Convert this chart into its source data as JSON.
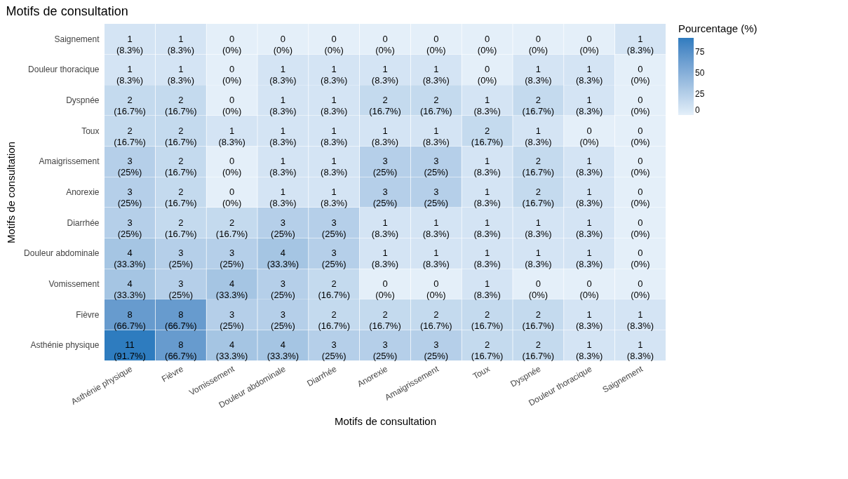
{
  "chart_data": {
    "type": "heatmap",
    "title": "Motifs de consultation",
    "xlabel": "Motifs de consultation",
    "ylabel": "Motifs de consultation",
    "legend_title": "Pourcentage (%)",
    "categories": [
      "Asthénie physique",
      "Fièvre",
      "Vomissement",
      "Douleur abdominale",
      "Diarrhée",
      "Anorexie",
      "Amaigrissement",
      "Toux",
      "Dyspnée",
      "Douleur thoracique",
      "Saignement"
    ],
    "y_categories": [
      "Saignement",
      "Douleur thoracique",
      "Dyspnée",
      "Toux",
      "Amaigrissement",
      "Anorexie",
      "Diarrhée",
      "Douleur abdominale",
      "Vomissement",
      "Fièvre",
      "Asthénie physique"
    ],
    "cells": [
      [
        8.3,
        8.3,
        0,
        0,
        0,
        0,
        0,
        0,
        0,
        0,
        8.3
      ],
      [
        8.3,
        8.3,
        0,
        8.3,
        8.3,
        8.3,
        8.3,
        0,
        8.3,
        8.3,
        0
      ],
      [
        16.7,
        16.7,
        0,
        8.3,
        8.3,
        16.7,
        16.7,
        8.3,
        16.7,
        8.3,
        0
      ],
      [
        16.7,
        16.7,
        8.3,
        8.3,
        8.3,
        8.3,
        8.3,
        16.7,
        8.3,
        0,
        0
      ],
      [
        25,
        16.7,
        0,
        8.3,
        8.3,
        25,
        25,
        8.3,
        16.7,
        8.3,
        0
      ],
      [
        25,
        16.7,
        0,
        8.3,
        8.3,
        25,
        25,
        8.3,
        16.7,
        8.3,
        0
      ],
      [
        25,
        16.7,
        16.7,
        25,
        25,
        8.3,
        8.3,
        8.3,
        8.3,
        8.3,
        0
      ],
      [
        33.3,
        25,
        25,
        33.3,
        25,
        8.3,
        8.3,
        8.3,
        8.3,
        8.3,
        0
      ],
      [
        33.3,
        25,
        33.3,
        25,
        16.7,
        0,
        0,
        8.3,
        0,
        0,
        0
      ],
      [
        66.7,
        66.7,
        25,
        25,
        16.7,
        16.7,
        16.7,
        16.7,
        16.7,
        8.3,
        8.3
      ],
      [
        91.7,
        66.7,
        33.3,
        33.3,
        25,
        25,
        25,
        16.7,
        16.7,
        8.3,
        8.3
      ]
    ],
    "cell_labels": [
      [
        "1\n(8.3%)",
        "1\n(8.3%)",
        "0\n(0%)",
        "0\n(0%)",
        "0\n(0%)",
        "0\n(0%)",
        "0\n(0%)",
        "0\n(0%)",
        "0\n(0%)",
        "0\n(0%)",
        "1\n(8.3%)"
      ],
      [
        "1\n(8.3%)",
        "1\n(8.3%)",
        "0\n(0%)",
        "1\n(8.3%)",
        "1\n(8.3%)",
        "1\n(8.3%)",
        "1\n(8.3%)",
        "0\n(0%)",
        "1\n(8.3%)",
        "1\n(8.3%)",
        "0\n(0%)"
      ],
      [
        "2\n(16.7%)",
        "2\n(16.7%)",
        "0\n(0%)",
        "1\n(8.3%)",
        "1\n(8.3%)",
        "2\n(16.7%)",
        "2\n(16.7%)",
        "1\n(8.3%)",
        "2\n(16.7%)",
        "1\n(8.3%)",
        "0\n(0%)"
      ],
      [
        "2\n(16.7%)",
        "2\n(16.7%)",
        "1\n(8.3%)",
        "1\n(8.3%)",
        "1\n(8.3%)",
        "1\n(8.3%)",
        "1\n(8.3%)",
        "2\n(16.7%)",
        "1\n(8.3%)",
        "0\n(0%)",
        "0\n(0%)"
      ],
      [
        "3\n(25%)",
        "2\n(16.7%)",
        "0\n(0%)",
        "1\n(8.3%)",
        "1\n(8.3%)",
        "3\n(25%)",
        "3\n(25%)",
        "1\n(8.3%)",
        "2\n(16.7%)",
        "1\n(8.3%)",
        "0\n(0%)"
      ],
      [
        "3\n(25%)",
        "2\n(16.7%)",
        "0\n(0%)",
        "1\n(8.3%)",
        "1\n(8.3%)",
        "3\n(25%)",
        "3\n(25%)",
        "1\n(8.3%)",
        "2\n(16.7%)",
        "1\n(8.3%)",
        "0\n(0%)"
      ],
      [
        "3\n(25%)",
        "2\n(16.7%)",
        "2\n(16.7%)",
        "3\n(25%)",
        "3\n(25%)",
        "1\n(8.3%)",
        "1\n(8.3%)",
        "1\n(8.3%)",
        "1\n(8.3%)",
        "1\n(8.3%)",
        "0\n(0%)"
      ],
      [
        "4\n(33.3%)",
        "3\n(25%)",
        "3\n(25%)",
        "4\n(33.3%)",
        "3\n(25%)",
        "1\n(8.3%)",
        "1\n(8.3%)",
        "1\n(8.3%)",
        "1\n(8.3%)",
        "1\n(8.3%)",
        "0\n(0%)"
      ],
      [
        "4\n(33.3%)",
        "3\n(25%)",
        "4\n(33.3%)",
        "3\n(25%)",
        "2\n(16.7%)",
        "0\n(0%)",
        "0\n(0%)",
        "1\n(8.3%)",
        "0\n(0%)",
        "0\n(0%)",
        "0\n(0%)"
      ],
      [
        "8\n(66.7%)",
        "8\n(66.7%)",
        "3\n(25%)",
        "3\n(25%)",
        "2\n(16.7%)",
        "2\n(16.7%)",
        "2\n(16.7%)",
        "2\n(16.7%)",
        "2\n(16.7%)",
        "1\n(8.3%)",
        "1\n(8.3%)"
      ],
      [
        "11\n(91.7%)",
        "8\n(66.7%)",
        "4\n(33.3%)",
        "4\n(33.3%)",
        "3\n(25%)",
        "3\n(25%)",
        "3\n(25%)",
        "2\n(16.7%)",
        "2\n(16.7%)",
        "1\n(8.3%)",
        "1\n(8.3%)"
      ]
    ],
    "colors": [
      "#e4eff9",
      "#2e7cbf"
    ],
    "clim": [
      0,
      91.7
    ],
    "cticks": [
      0,
      25,
      50,
      75
    ]
  }
}
